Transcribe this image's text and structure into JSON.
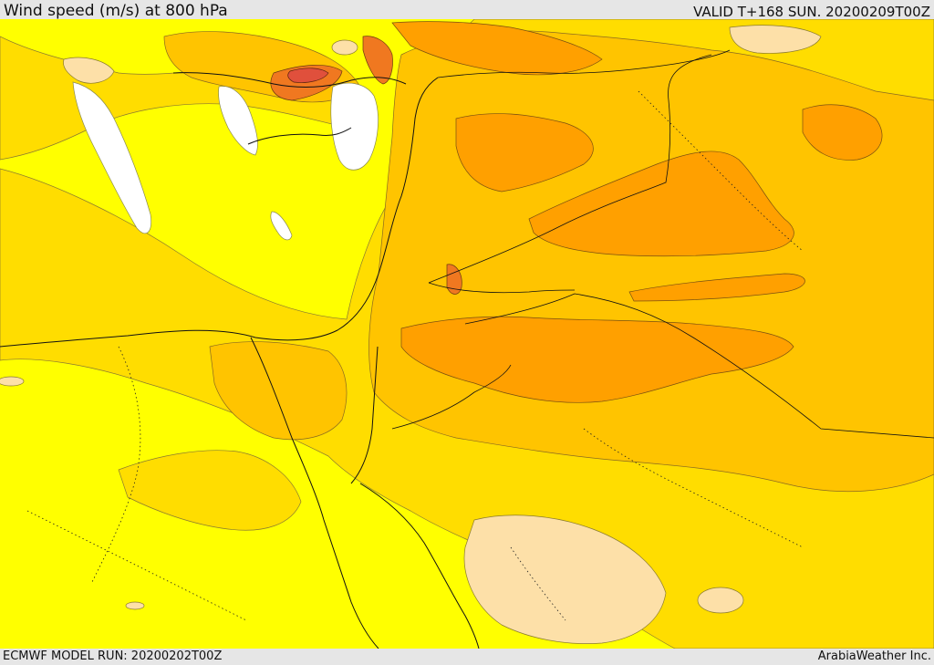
{
  "header": {
    "title": "Wind speed (m/s) at 800 hPa",
    "valid": "VALID T+168 SUN. 20200209T00Z"
  },
  "footer": {
    "model_run": "ECMWF MODEL RUN: 20200202T00Z",
    "credit": "ArabiaWeather Inc."
  },
  "colors": {
    "yellow": "#ffff00",
    "gold": "#ffdd00",
    "light_orange": "#ffc400",
    "orange": "#ffa000",
    "dark_orange": "#f07820",
    "red": "#e0503c",
    "peach": "#fde0a8",
    "white": "#ffffff"
  }
}
